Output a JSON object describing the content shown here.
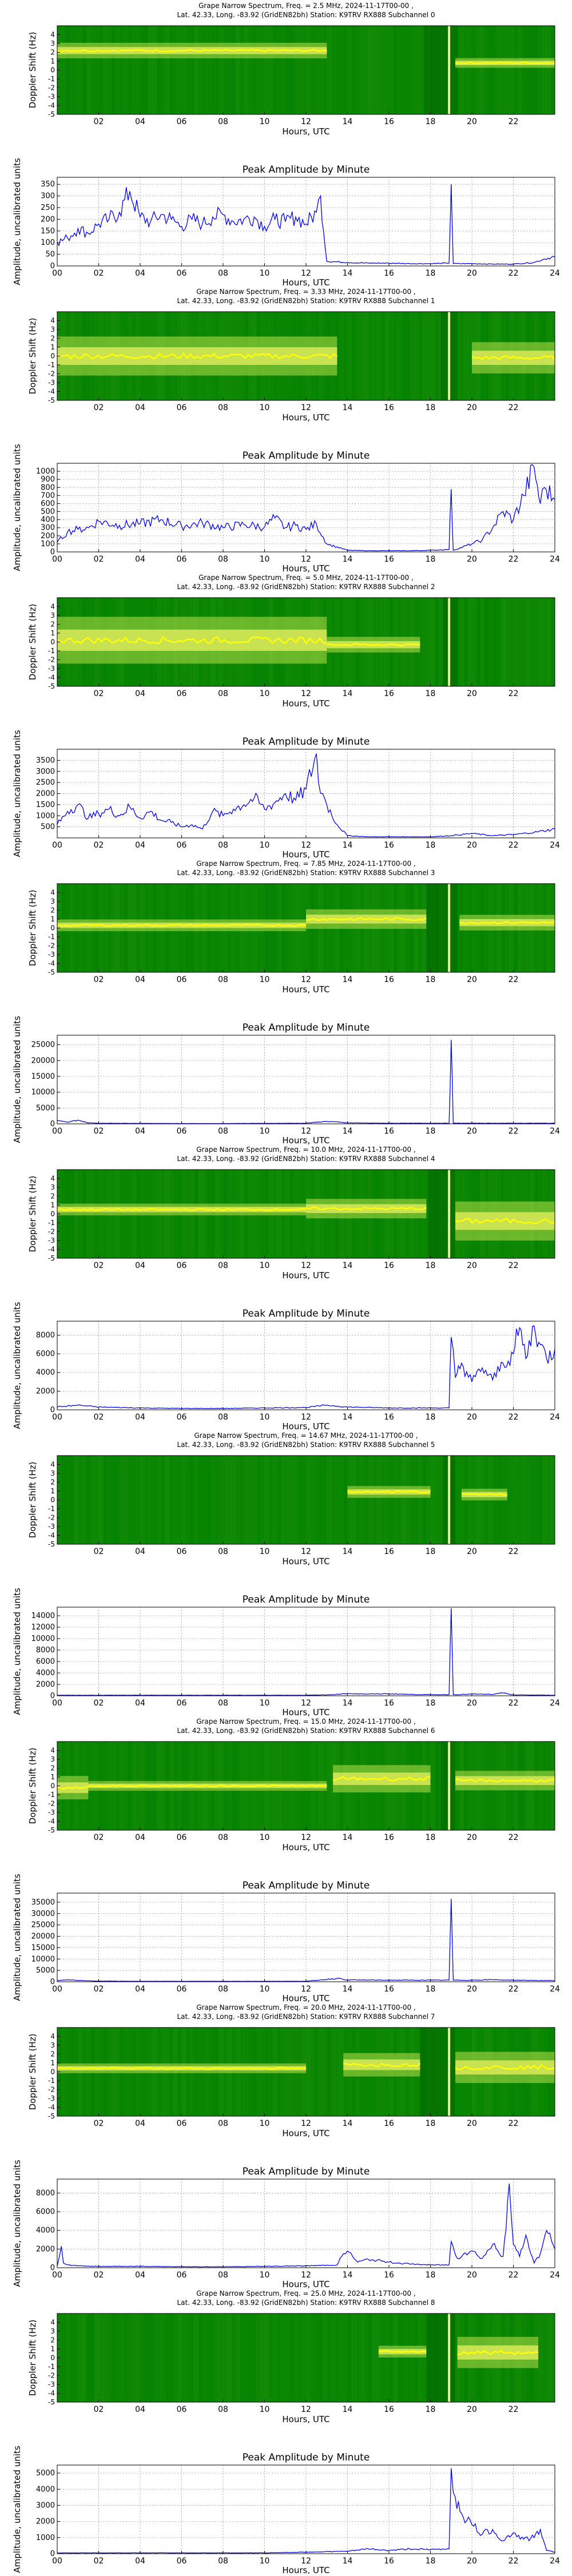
{
  "figure": {
    "spectrum_ylabel": "Doppler Shift (Hz)",
    "amplitude_ylabel": "Amplitude, uncalibrated units",
    "xlabel": "Hours, UTC",
    "amplitude_title": "Peak Amplitude by Minute",
    "spectrum_xticks": [
      "02",
      "04",
      "06",
      "08",
      "10",
      "12",
      "14",
      "16",
      "18",
      "20",
      "22"
    ],
    "amplitude_xticks": [
      "00",
      "02",
      "04",
      "06",
      "08",
      "10",
      "12",
      "14",
      "16",
      "18",
      "20",
      "22",
      "24"
    ],
    "doppler_ticks": [
      4,
      3,
      2,
      1,
      0,
      -1,
      -2,
      -3,
      -4,
      -5
    ],
    "line_color": "#0000ff",
    "spectrum_bg": "#008000",
    "signal_color": "#ffff00"
  },
  "chart_data": [
    {
      "type": "heatmap",
      "subchannel": 0,
      "title_line1": "Grape Narrow Spectrum, Freq. = 2.5 MHz, 2024-11-17T00-00 ,",
      "title_line2": "Lat.  42.33, Long. -83.92 (GridEN82bh) Station: K9TRV RX888 Subchannel 0",
      "ylim": [
        -5,
        5
      ],
      "signal_segments": [
        [
          0,
          13,
          2.2,
          0.4
        ],
        [
          19.2,
          24,
          0.8,
          0.0
        ]
      ],
      "null_band": [
        17.7,
        19.3
      ],
      "gap_line": 18.9
    },
    {
      "type": "line",
      "subchannel": 0,
      "title": "Peak Amplitude by Minute",
      "yticks": [
        0,
        50,
        100,
        150,
        200,
        250,
        300,
        350
      ],
      "ylim": [
        0,
        380
      ],
      "xlim": [
        0,
        24
      ],
      "x": [
        0,
        0.5,
        1,
        1.5,
        2,
        2.5,
        3,
        3.5,
        4,
        4.5,
        5,
        5.5,
        6,
        6.5,
        7,
        7.5,
        8,
        8.5,
        9,
        9.5,
        10,
        10.5,
        11,
        11.5,
        12,
        12.5,
        12.7,
        13,
        14,
        15,
        16,
        17,
        18,
        18.9,
        19,
        19.1,
        20,
        21,
        22,
        23,
        23.5,
        24
      ],
      "y": [
        100,
        120,
        160,
        140,
        180,
        200,
        230,
        320,
        210,
        190,
        220,
        200,
        170,
        200,
        180,
        210,
        220,
        190,
        200,
        210,
        170,
        200,
        190,
        210,
        180,
        230,
        300,
        20,
        15,
        12,
        12,
        10,
        10,
        12,
        350,
        10,
        10,
        8,
        8,
        15,
        30,
        40
      ]
    },
    {
      "type": "heatmap",
      "subchannel": 1,
      "title_line1": "Grape Narrow Spectrum, Freq. = 3.33 MHz, 2024-11-17T00-00 ,",
      "title_line2": "Lat.  42.33, Long. -83.92 (GridEN82bh) Station: K9TRV RX888 Subchannel 1",
      "ylim": [
        -5,
        5
      ],
      "signal_segments": [
        [
          0,
          13.5,
          0.0,
          1.0
        ],
        [
          20,
          24,
          -0.2,
          0.8
        ]
      ],
      "null_band": [
        18.5,
        19.3
      ],
      "gap_line": 18.9
    },
    {
      "type": "line",
      "subchannel": 1,
      "title": "Peak Amplitude by Minute",
      "yticks": [
        0,
        100,
        200,
        300,
        400,
        500,
        600,
        700,
        800,
        900,
        1000
      ],
      "ylim": [
        0,
        1100
      ],
      "xlim": [
        0,
        24
      ],
      "x": [
        0,
        0.5,
        1,
        1.5,
        2,
        3,
        4,
        5,
        6,
        7,
        8,
        9,
        10,
        10.5,
        11,
        11.5,
        12,
        12.5,
        13,
        14,
        15,
        16,
        17,
        18,
        18.9,
        19,
        19.1,
        20,
        20.5,
        21,
        21.5,
        22,
        22.5,
        23,
        23.3,
        23.5,
        24
      ],
      "y": [
        120,
        250,
        280,
        300,
        380,
        330,
        350,
        400,
        320,
        360,
        300,
        340,
        310,
        420,
        300,
        330,
        280,
        350,
        100,
        20,
        15,
        15,
        15,
        20,
        30,
        780,
        20,
        100,
        150,
        300,
        500,
        400,
        700,
        1050,
        600,
        800,
        650
      ]
    },
    {
      "type": "heatmap",
      "subchannel": 2,
      "title_line1": "Grape Narrow Spectrum, Freq. = 5.0 MHz, 2024-11-17T00-00 ,",
      "title_line2": "Lat.  42.33, Long. -83.92 (GridEN82bh) Station: K9TRV RX888 Subchannel 2",
      "ylim": [
        -5,
        5
      ],
      "signal_segments": [
        [
          0,
          13,
          0.2,
          1.2
        ],
        [
          13,
          17.5,
          -0.3,
          0.4
        ]
      ],
      "null_band": [
        18.6,
        19.3
      ],
      "gap_line": 18.9
    },
    {
      "type": "line",
      "subchannel": 2,
      "title": "Peak Amplitude by Minute",
      "yticks": [
        500,
        1000,
        1500,
        2000,
        2500,
        3000,
        3500
      ],
      "ylim": [
        0,
        4000
      ],
      "xlim": [
        0,
        24
      ],
      "x": [
        0,
        0.5,
        1,
        1.5,
        2,
        2.5,
        3,
        3.5,
        4,
        4.5,
        5,
        5.5,
        6,
        6.5,
        7,
        7.5,
        8,
        8.5,
        9,
        9.5,
        10,
        10.5,
        11,
        11.5,
        12,
        12.5,
        12.6,
        12.8,
        13,
        13.5,
        14,
        15,
        16,
        17,
        18,
        19,
        20,
        21,
        22,
        23,
        24
      ],
      "y": [
        600,
        1200,
        1500,
        900,
        1100,
        1300,
        1000,
        1400,
        900,
        1200,
        800,
        700,
        500,
        600,
        400,
        1200,
        1000,
        1300,
        1500,
        1800,
        1300,
        1600,
        2000,
        1700,
        2200,
        3800,
        2500,
        2000,
        1500,
        600,
        100,
        50,
        50,
        50,
        50,
        100,
        200,
        100,
        150,
        250,
        400
      ]
    },
    {
      "type": "heatmap",
      "subchannel": 3,
      "title_line1": "Grape Narrow Spectrum, Freq. = 7.85 MHz, 2024-11-17T00-00 ,",
      "title_line2": "Lat.  42.33, Long. -83.92 (GridEN82bh) Station: K9TRV RX888 Subchannel 3",
      "ylim": [
        -5,
        5
      ],
      "signal_segments": [
        [
          0,
          12,
          0.3,
          0.3
        ],
        [
          12,
          17.8,
          1.0,
          0.5
        ],
        [
          19.4,
          24,
          0.6,
          0.4
        ]
      ],
      "null_band": [
        17.8,
        19.3
      ],
      "gap_line": 18.9
    },
    {
      "type": "line",
      "subchannel": 3,
      "title": "Peak Amplitude by Minute",
      "yticks": [
        0,
        5000,
        10000,
        15000,
        20000,
        25000
      ],
      "ylim": [
        0,
        28000
      ],
      "xlim": [
        0,
        24
      ],
      "x": [
        0,
        0.5,
        1,
        1.5,
        2,
        4,
        6,
        8,
        10,
        12,
        13,
        14,
        16,
        18,
        18.9,
        19,
        19.1,
        20,
        22,
        24
      ],
      "y": [
        1000,
        500,
        1200,
        300,
        200,
        150,
        100,
        100,
        150,
        200,
        800,
        300,
        200,
        200,
        200,
        26500,
        200,
        200,
        200,
        200
      ]
    },
    {
      "type": "heatmap",
      "subchannel": 4,
      "title_line1": "Grape Narrow Spectrum, Freq. = 10.0 MHz, 2024-11-17T00-00 ,",
      "title_line2": "Lat.  42.33, Long. -83.92 (GridEN82bh) Station: K9TRV RX888 Subchannel 4",
      "ylim": [
        -5,
        5
      ],
      "signal_segments": [
        [
          0,
          12,
          0.5,
          0.3
        ],
        [
          12,
          17.8,
          0.6,
          0.5
        ],
        [
          19.2,
          24,
          -0.8,
          1.0
        ]
      ],
      "null_band": [
        17.9,
        19.2
      ],
      "gap_line": 18.9
    },
    {
      "type": "line",
      "subchannel": 4,
      "title": "Peak Amplitude by Minute",
      "yticks": [
        0,
        2000,
        4000,
        6000,
        8000
      ],
      "ylim": [
        0,
        9500
      ],
      "xlim": [
        0,
        24
      ],
      "x": [
        0,
        1,
        2,
        4,
        6,
        8,
        10,
        12,
        13,
        14,
        16,
        18,
        18.9,
        19,
        19.2,
        19.5,
        20,
        20.5,
        21,
        21.5,
        22,
        22.3,
        22.6,
        23,
        23.3,
        23.6,
        24
      ],
      "y": [
        300,
        500,
        300,
        200,
        150,
        150,
        200,
        250,
        500,
        300,
        200,
        200,
        200,
        7800,
        3500,
        5000,
        3000,
        4500,
        3200,
        5000,
        6000,
        8800,
        5500,
        9000,
        7000,
        5500,
        6500
      ]
    },
    {
      "type": "heatmap",
      "subchannel": 5,
      "title_line1": "Grape Narrow Spectrum, Freq. = 14.67 MHz, 2024-11-17T00-00 ,",
      "title_line2": "Lat.  42.33, Long. -83.92 (GridEN82bh) Station: K9TRV RX888 Subchannel 5",
      "ylim": [
        -5,
        5
      ],
      "signal_segments": [
        [
          14,
          18,
          0.9,
          0.3
        ],
        [
          19.5,
          21.7,
          0.6,
          0.3
        ]
      ],
      "null_band": [
        18.6,
        19.2
      ],
      "gap_line": 18.9
    },
    {
      "type": "line",
      "subchannel": 5,
      "title": "Peak Amplitude by Minute",
      "yticks": [
        0,
        2000,
        4000,
        6000,
        8000,
        10000,
        12000,
        14000
      ],
      "ylim": [
        0,
        15500
      ],
      "xlim": [
        0,
        24
      ],
      "x": [
        0,
        2,
        4,
        6,
        8,
        10,
        12,
        13,
        14,
        15,
        16,
        17,
        18,
        18.9,
        19,
        19.1,
        20,
        21,
        21.5,
        22,
        24
      ],
      "y": [
        100,
        100,
        100,
        100,
        100,
        100,
        100,
        150,
        400,
        300,
        350,
        250,
        200,
        200,
        15300,
        200,
        300,
        250,
        500,
        150,
        100
      ]
    },
    {
      "type": "heatmap",
      "subchannel": 6,
      "title_line1": "Grape Narrow Spectrum, Freq. = 15.0 MHz, 2024-11-17T00-00 ,",
      "title_line2": "Lat.  42.33, Long. -83.92 (GridEN82bh) Station: K9TRV RX888 Subchannel 6",
      "ylim": [
        -5,
        5
      ],
      "signal_segments": [
        [
          0,
          1.5,
          -0.2,
          0.6
        ],
        [
          1.5,
          13,
          0.0,
          0.2
        ],
        [
          13.3,
          18,
          0.8,
          0.7
        ],
        [
          19.2,
          24,
          0.6,
          0.5
        ]
      ],
      "null_band": [
        18.5,
        19.2
      ],
      "gap_line": 18.9
    },
    {
      "type": "line",
      "subchannel": 6,
      "title": "Peak Amplitude by Minute",
      "yticks": [
        0,
        5000,
        10000,
        15000,
        20000,
        25000,
        30000,
        35000
      ],
      "ylim": [
        0,
        39000
      ],
      "xlim": [
        0,
        24
      ],
      "x": [
        0,
        0.5,
        1,
        2,
        4,
        6,
        8,
        10,
        12,
        13.5,
        14,
        16,
        18,
        18.9,
        19,
        19.1,
        20,
        21,
        22,
        23,
        24
      ],
      "y": [
        500,
        800,
        600,
        300,
        200,
        200,
        200,
        200,
        200,
        1500,
        800,
        700,
        700,
        700,
        36500,
        700,
        700,
        900,
        700,
        600,
        500
      ]
    },
    {
      "type": "heatmap",
      "subchannel": 7,
      "title_line1": "Grape Narrow Spectrum, Freq. = 20.0 MHz, 2024-11-17T00-00 ,",
      "title_line2": "Lat.  42.33, Long. -83.92 (GridEN82bh) Station: K9TRV RX888 Subchannel 7",
      "ylim": [
        -5,
        5
      ],
      "signal_segments": [
        [
          0,
          12,
          0.4,
          0.2
        ],
        [
          13.8,
          17.5,
          0.8,
          0.6
        ],
        [
          19.2,
          24,
          0.5,
          0.8
        ]
      ],
      "null_band": [
        17.5,
        19.2
      ],
      "gap_line": 18.9
    },
    {
      "type": "line",
      "subchannel": 7,
      "title": "Peak Amplitude by Minute",
      "yticks": [
        0,
        2000,
        4000,
        6000,
        8000
      ],
      "ylim": [
        0,
        9500
      ],
      "xlim": [
        0,
        24
      ],
      "x": [
        0,
        0.2,
        0.3,
        0.5,
        1,
        2,
        4,
        6,
        8,
        10,
        12,
        13.5,
        13.8,
        14,
        14.5,
        15,
        16,
        17,
        18,
        18.9,
        19,
        19.3,
        19.6,
        20,
        20.5,
        21,
        21.5,
        21.8,
        22,
        22.3,
        22.6,
        23,
        23.3,
        23.6,
        24
      ],
      "y": [
        200,
        2300,
        500,
        300,
        200,
        150,
        150,
        100,
        100,
        150,
        200,
        300,
        1500,
        1800,
        600,
        900,
        600,
        400,
        300,
        300,
        2800,
        1000,
        1500,
        1800,
        1000,
        2500,
        1200,
        9000,
        2500,
        1200,
        3500,
        500,
        1500,
        4000,
        2000
      ]
    },
    {
      "type": "heatmap",
      "subchannel": 8,
      "title_line1": "Grape Narrow Spectrum, Freq. = 25.0 MHz, 2024-11-17T00-00 ,",
      "title_line2": "Lat.  42.33, Long. -83.92 (GridEN82bh) Station: K9TRV RX888 Subchannel 8",
      "ylim": [
        -5,
        5
      ],
      "signal_segments": [
        [
          15.5,
          17.8,
          0.7,
          0.3
        ],
        [
          19.3,
          23.2,
          0.6,
          0.8
        ]
      ],
      "null_band": [
        17.8,
        19.2
      ],
      "gap_line": 18.9
    },
    {
      "type": "line",
      "subchannel": 8,
      "title": "Peak Amplitude by Minute",
      "yticks": [
        0,
        1000,
        2000,
        3000,
        4000,
        5000
      ],
      "ylim": [
        0,
        5500
      ],
      "xlim": [
        0,
        24
      ],
      "x": [
        0,
        2,
        4,
        6,
        8,
        10,
        12,
        14,
        15,
        16,
        17,
        18,
        18.9,
        19,
        19.2,
        19.5,
        20,
        20.5,
        21,
        21.5,
        22,
        22.5,
        23,
        23.3,
        23.6,
        24
      ],
      "y": [
        50,
        50,
        50,
        50,
        50,
        50,
        100,
        150,
        300,
        200,
        300,
        250,
        300,
        5300,
        3500,
        2500,
        1800,
        1200,
        1500,
        800,
        1300,
        900,
        1000,
        1500,
        200,
        100
      ]
    }
  ]
}
